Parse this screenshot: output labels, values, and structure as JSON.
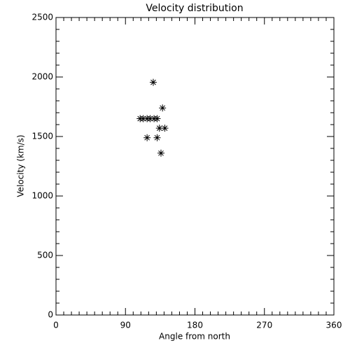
{
  "chart_data": {
    "type": "scatter",
    "title": "Velocity distribution",
    "x_label": "Angle from north",
    "y_label": "Velocity (km/s)",
    "marker": "asterisk",
    "color": "#000000",
    "x": [
      126,
      138,
      109,
      113,
      118,
      122,
      127,
      131,
      134,
      141,
      118,
      131,
      136
    ],
    "values": [
      1955,
      1740,
      1650,
      1650,
      1650,
      1650,
      1650,
      1650,
      1570,
      1570,
      1490,
      1490,
      1360
    ],
    "xlim": [
      0,
      360
    ],
    "xticks": [
      0,
      90,
      180,
      270,
      360
    ],
    "ylim": [
      0,
      2500
    ],
    "yticks": [
      0,
      500,
      1000,
      1500,
      2000,
      2500
    ]
  }
}
